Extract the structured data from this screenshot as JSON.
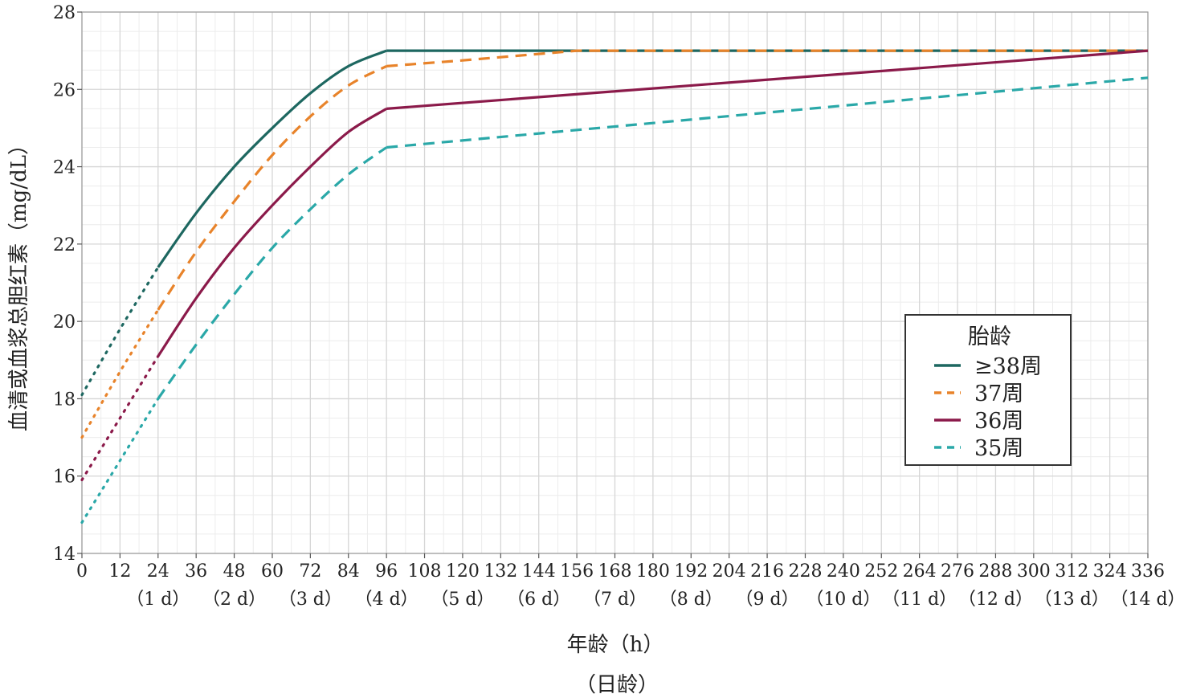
{
  "chart_data": {
    "type": "line",
    "ylabel": "血清或血浆总胆红素（mg/dL）",
    "xlabel": "年龄（h）",
    "xlabel_sub": "（日龄）",
    "xlim": [
      0,
      336
    ],
    "ylim": [
      14,
      28
    ],
    "x_ticks": [
      0,
      12,
      24,
      36,
      48,
      60,
      72,
      84,
      96,
      108,
      120,
      132,
      144,
      156,
      168,
      180,
      192,
      204,
      216,
      228,
      240,
      252,
      264,
      276,
      288,
      300,
      312,
      324,
      336
    ],
    "y_ticks": [
      14,
      16,
      18,
      20,
      22,
      24,
      26,
      28
    ],
    "day_labels": [
      {
        "x": 24,
        "label": "（1 d）"
      },
      {
        "x": 48,
        "label": "（2 d）"
      },
      {
        "x": 72,
        "label": "（3 d）"
      },
      {
        "x": 96,
        "label": "（4 d）"
      },
      {
        "x": 120,
        "label": "（5 d）"
      },
      {
        "x": 144,
        "label": "（6 d）"
      },
      {
        "x": 168,
        "label": "（7 d）"
      },
      {
        "x": 192,
        "label": "（8 d）"
      },
      {
        "x": 216,
        "label": "（9 d）"
      },
      {
        "x": 240,
        "label": "（10 d）"
      },
      {
        "x": 264,
        "label": "（11 d）"
      },
      {
        "x": 288,
        "label": "（12 d）"
      },
      {
        "x": 312,
        "label": "（13 d）"
      },
      {
        "x": 336,
        "label": "（14 d）"
      }
    ],
    "grid": true,
    "legend": {
      "title": "胎龄",
      "placement": "right-middle"
    },
    "series": [
      {
        "name": "≥38周",
        "color": "#1d6760",
        "style": "solid",
        "dotted_segment": [
          [
            0,
            18.1
          ],
          [
            12,
            19.8
          ],
          [
            24,
            21.4
          ]
        ],
        "points": [
          [
            24,
            21.4
          ],
          [
            36,
            22.8
          ],
          [
            48,
            24.0
          ],
          [
            60,
            25.0
          ],
          [
            72,
            25.9
          ],
          [
            84,
            26.6
          ],
          [
            96,
            27.0
          ],
          [
            336,
            27.0
          ]
        ]
      },
      {
        "name": "37周",
        "color": "#e8832a",
        "style": "dashed",
        "dotted_segment": [
          [
            0,
            17.0
          ],
          [
            12,
            18.7
          ],
          [
            24,
            20.3
          ]
        ],
        "points": [
          [
            24,
            20.3
          ],
          [
            36,
            21.8
          ],
          [
            48,
            23.1
          ],
          [
            60,
            24.3
          ],
          [
            72,
            25.3
          ],
          [
            84,
            26.1
          ],
          [
            96,
            26.6
          ],
          [
            120,
            26.75
          ],
          [
            156,
            27.0
          ],
          [
            336,
            27.0
          ]
        ]
      },
      {
        "name": "36周",
        "color": "#8b1a4a",
        "style": "solid",
        "dotted_segment": [
          [
            0,
            15.9
          ],
          [
            12,
            17.5
          ],
          [
            24,
            19.1
          ]
        ],
        "points": [
          [
            24,
            19.1
          ],
          [
            36,
            20.6
          ],
          [
            48,
            21.9
          ],
          [
            60,
            23.0
          ],
          [
            72,
            24.0
          ],
          [
            84,
            24.9
          ],
          [
            96,
            25.5
          ],
          [
            336,
            27.0
          ]
        ]
      },
      {
        "name": "35周",
        "color": "#2aa8a8",
        "style": "dashed",
        "dotted_segment": [
          [
            0,
            14.8
          ],
          [
            12,
            16.4
          ],
          [
            24,
            18.0
          ]
        ],
        "points": [
          [
            24,
            18.0
          ],
          [
            36,
            19.4
          ],
          [
            48,
            20.7
          ],
          [
            60,
            21.9
          ],
          [
            72,
            22.9
          ],
          [
            84,
            23.8
          ],
          [
            96,
            24.5
          ],
          [
            336,
            26.3
          ]
        ]
      }
    ]
  }
}
